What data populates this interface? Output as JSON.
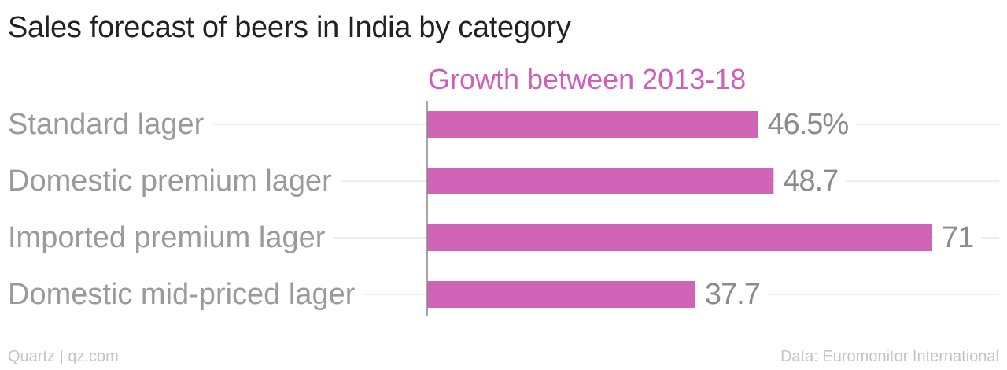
{
  "title": "Sales forecast of beers in India by category",
  "footer": {
    "source_left": "Quartz | qz.com",
    "source_right": "Data: Euromonitor International"
  },
  "colors": {
    "bar": "#d264b8",
    "series_label": "#cf5fb7",
    "gridline": "#e8e8e8",
    "axis": "#888888"
  },
  "chart_data": {
    "type": "bar",
    "orientation": "horizontal",
    "title": "Sales forecast of beers in India by category",
    "xlim": [
      0,
      71
    ],
    "grid": true,
    "categories": [
      "Standard lager",
      "Domestic premium lager",
      "Imported premium lager",
      "Domestic mid-priced lager"
    ],
    "series": [
      {
        "name": "Growth between 2013-18",
        "values": [
          46.5,
          48.7,
          71,
          37.7
        ],
        "value_labels": [
          "46.5%",
          "48.7",
          "71",
          "37.7"
        ]
      }
    ]
  }
}
